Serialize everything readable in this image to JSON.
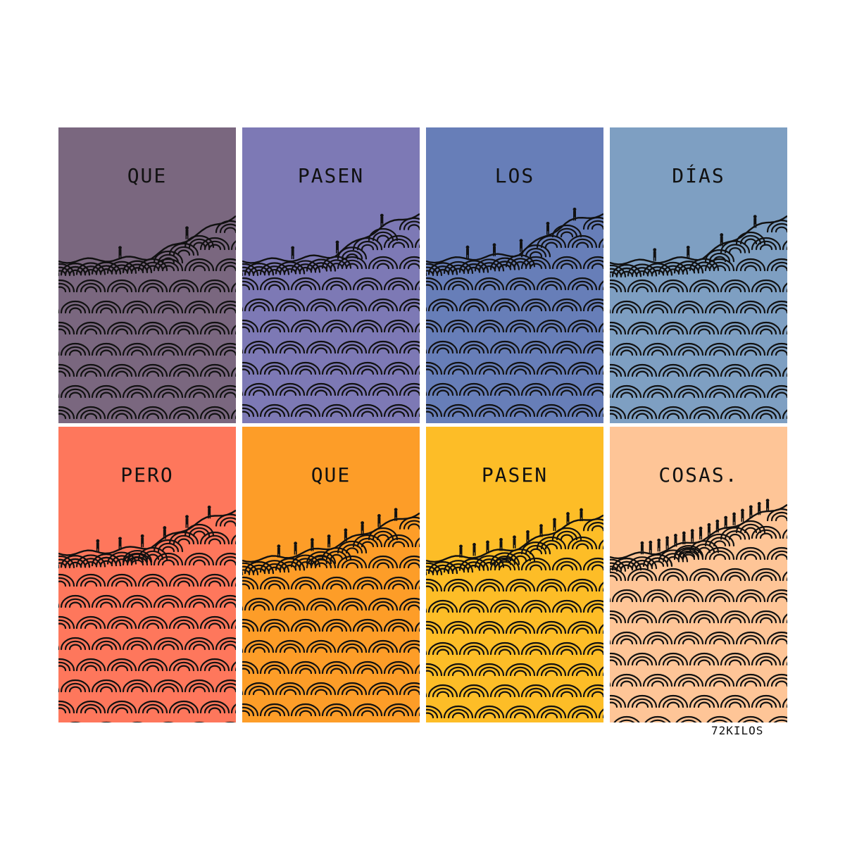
{
  "panels": [
    {
      "word": "QUE",
      "color": "#7a677f"
    },
    {
      "word": "PASEN",
      "color": "#7d79b5"
    },
    {
      "word": "LOS",
      "color": "#677eb8"
    },
    {
      "word": "DÍAS",
      "color": "#7e9fc2"
    },
    {
      "word": "PERO",
      "color": "#fe775c"
    },
    {
      "word": "QUE",
      "color": "#fd9d28"
    },
    {
      "word": "PASEN",
      "color": "#fdbd27"
    },
    {
      "word": "COSAS.",
      "color": "#fec597"
    }
  ],
  "signature": "72KILOS",
  "line_color": "#111111",
  "figure_icon": "person-silhouette-icon"
}
